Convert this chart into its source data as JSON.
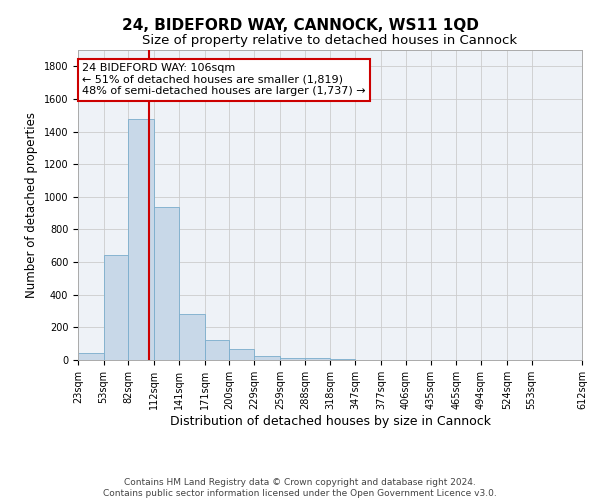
{
  "title": "24, BIDEFORD WAY, CANNOCK, WS11 1QD",
  "subtitle": "Size of property relative to detached houses in Cannock",
  "xlabel": "Distribution of detached houses by size in Cannock",
  "ylabel": "Number of detached properties",
  "bar_color": "#c8d8e8",
  "bar_edge_color": "#7aadcc",
  "bar_heights": [
    40,
    645,
    1475,
    935,
    285,
    125,
    65,
    25,
    15,
    10,
    5,
    3,
    2,
    1,
    1,
    1,
    0,
    0,
    0
  ],
  "bin_edges": [
    23,
    53,
    82,
    112,
    141,
    171,
    200,
    229,
    259,
    288,
    318,
    347,
    377,
    406,
    435,
    465,
    494,
    524,
    553,
    612
  ],
  "tick_labels": [
    "23sqm",
    "53sqm",
    "82sqm",
    "112sqm",
    "141sqm",
    "171sqm",
    "200sqm",
    "229sqm",
    "259sqm",
    "288sqm",
    "318sqm",
    "347sqm",
    "377sqm",
    "406sqm",
    "435sqm",
    "465sqm",
    "494sqm",
    "524sqm",
    "553sqm",
    "612sqm"
  ],
  "property_size": 106,
  "vline_color": "#cc0000",
  "annotation_line1": "24 BIDEFORD WAY: 106sqm",
  "annotation_line2": "← 51% of detached houses are smaller (1,819)",
  "annotation_line3": "48% of semi-detached houses are larger (1,737) →",
  "annotation_box_color": "#ffffff",
  "annotation_box_edge": "#cc0000",
  "ylim": [
    0,
    1900
  ],
  "yticks": [
    0,
    200,
    400,
    600,
    800,
    1000,
    1200,
    1400,
    1600,
    1800
  ],
  "grid_color": "#cccccc",
  "background_color": "#eef2f7",
  "footer_line1": "Contains HM Land Registry data © Crown copyright and database right 2024.",
  "footer_line2": "Contains public sector information licensed under the Open Government Licence v3.0.",
  "title_fontsize": 11,
  "subtitle_fontsize": 9.5,
  "xlabel_fontsize": 9,
  "ylabel_fontsize": 8.5,
  "tick_fontsize": 7,
  "annot_fontsize": 8,
  "footer_fontsize": 6.5
}
